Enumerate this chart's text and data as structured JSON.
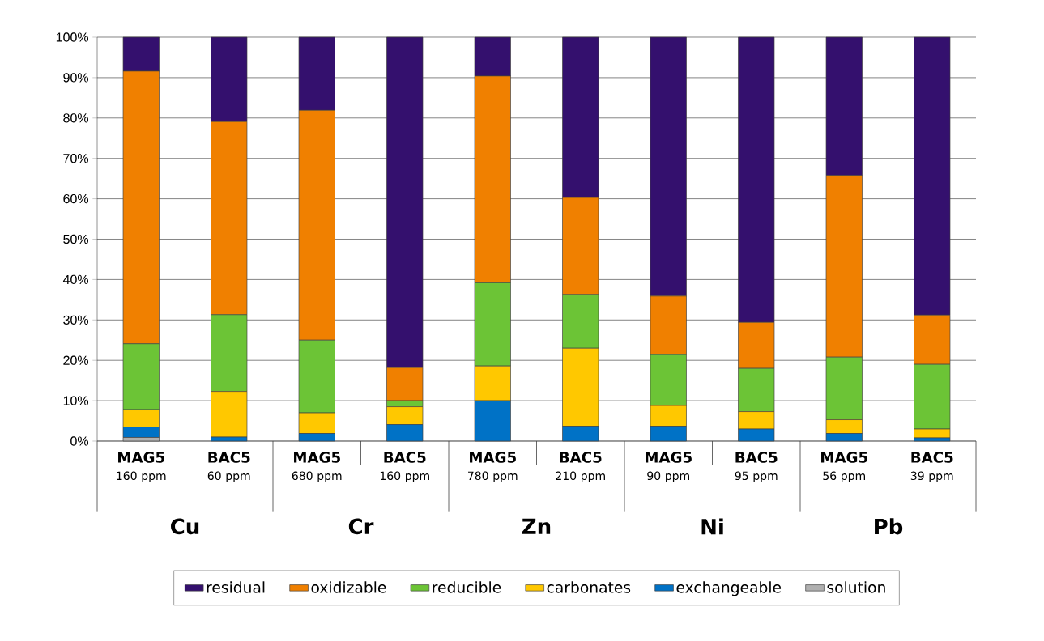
{
  "chart_data": {
    "type": "bar",
    "stacked": true,
    "categories": [
      "**MAG5** 160 ppm",
      "**BAC5** 60 ppm",
      "**MAG5** 680 ppm",
      "**BAC5** 160 ppm",
      "**MAG5** 780 ppm",
      "**BAC5** 210 ppm",
      "**MAG5** 90 ppm",
      "**BAC5** 95 ppm",
      "**MAG5** 56 ppm",
      "**BAC5** 39 ppm"
    ],
    "series": [
      {
        "name": "solution",
        "color": "#b0b0b0",
        "values": [
          0.9,
          0,
          0,
          0,
          0,
          0,
          0,
          0,
          0,
          0
        ]
      },
      {
        "name": "exchangeable",
        "color": "#0072c6",
        "values": [
          2.6,
          1.0,
          1.9,
          4.1,
          10.0,
          3.7,
          3.7,
          3.0,
          1.9,
          0.8
        ]
      },
      {
        "name": "carbonates",
        "color": "#ffc800",
        "values": [
          4.3,
          11.3,
          5.1,
          4.4,
          8.6,
          19.3,
          5.1,
          4.3,
          3.4,
          2.2
        ]
      },
      {
        "name": "reducible",
        "color": "#6cc436",
        "values": [
          16.3,
          19.0,
          18.0,
          1.5,
          20.6,
          13.3,
          12.6,
          10.7,
          15.5,
          16.0
        ]
      },
      {
        "name": "oxidizable",
        "color": "#f08000",
        "values": [
          67.5,
          47.8,
          56.9,
          8.2,
          51.2,
          24.0,
          14.5,
          11.4,
          45.0,
          12.2
        ]
      },
      {
        "name": "residual",
        "color": "#34106e",
        "values": [
          8.4,
          20.9,
          18.1,
          81.8,
          9.6,
          39.7,
          64.1,
          70.6,
          34.2,
          68.8
        ]
      }
    ],
    "ylim": [
      0,
      100
    ],
    "yticks": [
      {
        "value": 0,
        "label": "0%"
      },
      {
        "value": 10,
        "label": "10%"
      },
      {
        "value": 20,
        "label": "20%"
      },
      {
        "value": 30,
        "label": "30%"
      },
      {
        "value": 40,
        "label": "40%"
      },
      {
        "value": 50,
        "label": "50%"
      },
      {
        "value": 60,
        "label": "60%"
      },
      {
        "value": 70,
        "label": "70%"
      },
      {
        "value": 80,
        "label": "80%"
      },
      {
        "value": 90,
        "label": "90%"
      },
      {
        "value": 100,
        "label": "100%"
      }
    ],
    "grid": "y",
    "legend": "bottom",
    "annotations": [
      "Cu",
      "Cr",
      "Zn",
      "Ni",
      "Pb"
    ]
  }
}
